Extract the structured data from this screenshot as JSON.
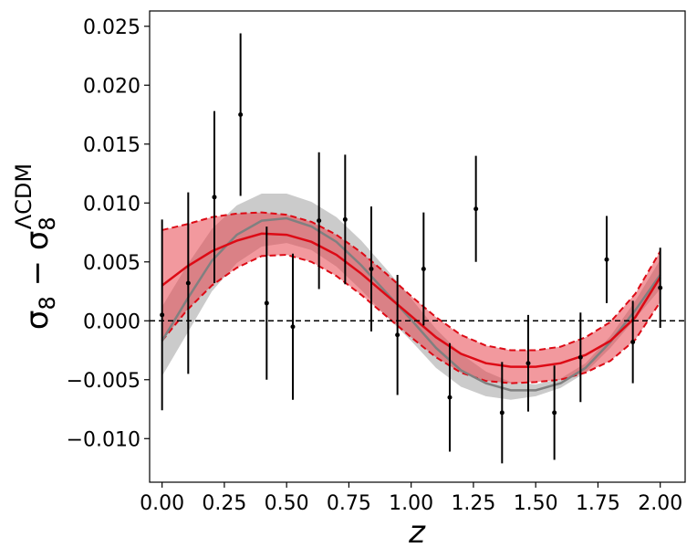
{
  "chart_data": {
    "type": "line",
    "title": "",
    "xlabel": "z",
    "ylabel": {
      "main": "σ",
      "main_sub": "8",
      "minus": " − ",
      "ref": "σ",
      "ref_sub": "8",
      "ref_sup": "ΛCDM"
    },
    "xlim": [
      -0.05,
      2.1
    ],
    "ylim": [
      -0.0137,
      0.0263
    ],
    "x_ticks": [
      0.0,
      0.25,
      0.5,
      0.75,
      1.0,
      1.25,
      1.5,
      1.75,
      2.0
    ],
    "x_tick_labels": [
      "0.00",
      "0.25",
      "0.50",
      "0.75",
      "1.00",
      "1.25",
      "1.50",
      "1.75",
      "2.00"
    ],
    "y_ticks": [
      -0.01,
      -0.005,
      0.0,
      0.005,
      0.01,
      0.015,
      0.02,
      0.025
    ],
    "y_tick_labels": [
      "−0.010",
      "−0.005",
      "0.000",
      "0.005",
      "0.010",
      "0.015",
      "0.020",
      "0.025"
    ],
    "grid": false,
    "reference_line": {
      "y": 0.0,
      "style": "dashed",
      "color": "#000000"
    },
    "model": {
      "amplitude": 0.0055,
      "period": 2.1,
      "offset": 0.002
    },
    "bands": [
      {
        "x": [
          0.0,
          0.1,
          0.2,
          0.3,
          0.4,
          0.5,
          0.6,
          0.7,
          0.8,
          0.9,
          1.0,
          1.1,
          1.2,
          1.3,
          1.4,
          1.5,
          1.6,
          1.7,
          1.8,
          1.9,
          2.0
        ],
        "upper": [
          0.0012,
          0.0047,
          0.0078,
          0.0098,
          0.0108,
          0.0108,
          0.0101,
          0.0088,
          0.0068,
          0.0044,
          0.0019,
          -0.0007,
          -0.0028,
          -0.0043,
          -0.0052,
          -0.0054,
          -0.0049,
          -0.0036,
          -0.0013,
          0.0017,
          0.0052
        ],
        "lower": [
          -0.0047,
          -0.0011,
          0.0025,
          0.0049,
          0.0063,
          0.0066,
          0.006,
          0.0046,
          0.0026,
          0.0004,
          -0.0017,
          -0.004,
          -0.0056,
          -0.0064,
          -0.0067,
          -0.0064,
          -0.0057,
          -0.0044,
          -0.0023,
          0.0002,
          0.0027
        ],
        "color": "#a9a9a9",
        "opacity": 0.6
      },
      {
        "x": [
          0.0,
          0.1,
          0.2,
          0.3,
          0.4,
          0.5,
          0.6,
          0.7,
          0.8,
          0.9,
          1.0,
          1.1,
          1.2,
          1.3,
          1.4,
          1.5,
          1.6,
          1.7,
          1.8,
          1.9,
          2.0
        ],
        "upper": [
          0.0077,
          0.0082,
          0.0088,
          0.0091,
          0.0092,
          0.009,
          0.0084,
          0.0073,
          0.0058,
          0.004,
          0.0021,
          0.0003,
          -0.0012,
          -0.0021,
          -0.0025,
          -0.0025,
          -0.0022,
          -0.0014,
          -0.0001,
          0.0023,
          0.0059
        ],
        "lower": [
          -0.0017,
          0.0009,
          0.003,
          0.0045,
          0.0055,
          0.0056,
          0.005,
          0.0038,
          0.0022,
          0.0004,
          -0.0014,
          -0.0031,
          -0.0044,
          -0.0051,
          -0.0053,
          -0.0052,
          -0.005,
          -0.0044,
          -0.0034,
          -0.0016,
          0.0016
        ],
        "color": "#e8454f",
        "opacity": 0.55
      }
    ],
    "series": [
      {
        "x": [
          0.0,
          0.1,
          0.2,
          0.3,
          0.4,
          0.5,
          0.6,
          0.7,
          0.8,
          0.9,
          1.0,
          1.1,
          1.2,
          1.3,
          1.4,
          1.5,
          1.6,
          1.7,
          1.8,
          1.9,
          2.0
        ],
        "y": [
          -0.0017,
          0.0018,
          0.0051,
          0.0073,
          0.0085,
          0.0087,
          0.008,
          0.0067,
          0.0047,
          0.0024,
          0.0001,
          -0.0023,
          -0.0042,
          -0.0053,
          -0.0059,
          -0.0059,
          -0.0053,
          -0.004,
          -0.0018,
          0.0009,
          0.0039
        ],
        "color": "#808080",
        "width": 2.5
      },
      {
        "x": [
          0.0,
          0.1,
          0.2,
          0.3,
          0.4,
          0.5,
          0.6,
          0.7,
          0.8,
          0.9,
          1.0,
          1.1,
          1.2,
          1.3,
          1.4,
          1.5,
          1.6,
          1.7,
          1.8,
          1.9,
          2.0
        ],
        "y": [
          0.003,
          0.0046,
          0.0059,
          0.0068,
          0.0074,
          0.0073,
          0.0067,
          0.0056,
          0.004,
          0.0022,
          0.0004,
          -0.0014,
          -0.0028,
          -0.0036,
          -0.0039,
          -0.0039,
          -0.0036,
          -0.0029,
          -0.0017,
          0.0003,
          0.0037
        ],
        "color": "#dd0a15",
        "width": 2.5
      }
    ],
    "dashed_edges": {
      "color": "#dd0a15",
      "style": "dashed"
    },
    "points": [
      {
        "x": 0.0,
        "y": 0.0005,
        "err": 0.0081
      },
      {
        "x": 0.105,
        "y": 0.0032,
        "err": 0.0077
      },
      {
        "x": 0.21,
        "y": 0.0105,
        "err": 0.0073
      },
      {
        "x": 0.315,
        "y": 0.0175,
        "err": 0.0069
      },
      {
        "x": 0.42,
        "y": 0.0015,
        "err": 0.0065
      },
      {
        "x": 0.525,
        "y": -0.0005,
        "err": 0.0062
      },
      {
        "x": 0.63,
        "y": 0.0085,
        "err": 0.0058
      },
      {
        "x": 0.735,
        "y": 0.0086,
        "err": 0.0055
      },
      {
        "x": 0.84,
        "y": 0.0044,
        "err": 0.0053
      },
      {
        "x": 0.945,
        "y": -0.0012,
        "err": 0.0051
      },
      {
        "x": 1.05,
        "y": 0.0044,
        "err": 0.0048
      },
      {
        "x": 1.155,
        "y": -0.0065,
        "err": 0.0046
      },
      {
        "x": 1.26,
        "y": 0.0095,
        "err": 0.0045
      },
      {
        "x": 1.365,
        "y": -0.0078,
        "err": 0.0043
      },
      {
        "x": 1.47,
        "y": -0.0036,
        "err": 0.0041
      },
      {
        "x": 1.575,
        "y": -0.0078,
        "err": 0.004
      },
      {
        "x": 1.68,
        "y": -0.0031,
        "err": 0.0038
      },
      {
        "x": 1.785,
        "y": 0.0052,
        "err": 0.0037
      },
      {
        "x": 1.89,
        "y": -0.0018,
        "err": 0.0035
      },
      {
        "x": 2.0,
        "y": 0.0028,
        "err": 0.0034
      }
    ],
    "point_color": "#000000"
  }
}
